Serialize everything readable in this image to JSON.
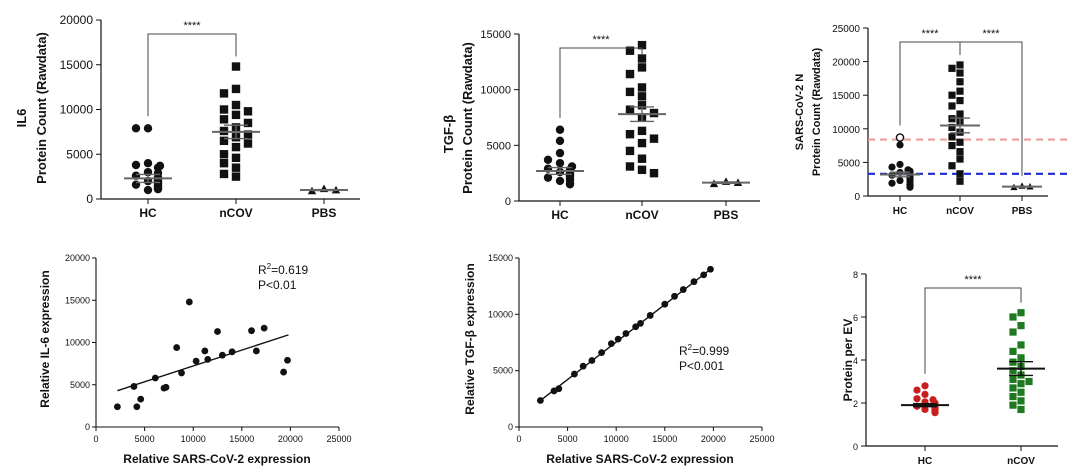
{
  "colors": {
    "black": "#111111",
    "gray": "#7a7a7a",
    "salmon": "#e8a09a",
    "blue": "#1a2bd6",
    "red": "#c81e1e",
    "green": "#1f7a1f"
  },
  "chart_data": [
    {
      "id": "p1",
      "type": "scatter",
      "title": "",
      "ylabel_top": "IL6",
      "ylabel": "Protein Count (Rawdata)",
      "ylim": [
        0,
        20000
      ],
      "yticks": [
        0,
        5000,
        10000,
        15000,
        20000
      ],
      "categories": [
        "HC",
        "nCOV",
        "PBS"
      ],
      "groups": [
        {
          "name": "HC",
          "marker": "circle",
          "color": "#111111",
          "mean": 2300,
          "sem": 450,
          "values": [
            7900,
            7900,
            4000,
            3800,
            3700,
            3500,
            3000,
            2900,
            2600,
            2400,
            2300,
            2100,
            2000,
            1900,
            1800,
            1700,
            1600,
            1500,
            1400,
            1300,
            1200,
            1100,
            1000
          ]
        },
        {
          "name": "nCOV",
          "marker": "square",
          "color": "#111111",
          "mean": 7500,
          "sem": 750,
          "values": [
            14800,
            12300,
            11800,
            10500,
            10000,
            9800,
            9400,
            8900,
            8500,
            8000,
            7600,
            7200,
            6900,
            6500,
            6200,
            5800,
            5000,
            4600,
            4000,
            3500,
            2800,
            2500
          ]
        },
        {
          "name": "PBS",
          "marker": "triangle",
          "color": "#111111",
          "mean": 1000,
          "sem": 60,
          "values": [
            1150,
            900,
            1000
          ]
        }
      ],
      "significance": [
        {
          "from": 0,
          "to": 1,
          "label": "****"
        }
      ]
    },
    {
      "id": "p2",
      "type": "scatter",
      "ylabel_top": "TGF-β",
      "ylabel": "Protein Count (Rawdata)",
      "ylim": [
        0,
        15000
      ],
      "yticks": [
        0,
        5000,
        10000,
        15000
      ],
      "categories": [
        "HC",
        "nCOV",
        "PBS"
      ],
      "groups": [
        {
          "name": "HC",
          "marker": "circle",
          "color": "#111111",
          "mean": 2700,
          "sem": 300,
          "values": [
            6400,
            5400,
            4300,
            3700,
            3400,
            3100,
            2900,
            2800,
            2700,
            2600,
            2500,
            2400,
            2300,
            2200,
            2100,
            2000,
            1900,
            1800,
            1600,
            1500
          ]
        },
        {
          "name": "nCOV",
          "marker": "square",
          "color": "#111111",
          "mean": 7800,
          "sem": 650,
          "values": [
            14000,
            13500,
            12800,
            12000,
            11400,
            10200,
            9800,
            9400,
            8600,
            8200,
            7900,
            7500,
            6300,
            6000,
            5600,
            5200,
            4500,
            3800,
            3100,
            2800,
            2500
          ]
        },
        {
          "name": "PBS",
          "marker": "triangle",
          "color": "#111111",
          "mean": 1650,
          "sem": 60,
          "values": [
            1750,
            1550,
            1650
          ]
        }
      ],
      "significance": [
        {
          "from": 0,
          "to": 1,
          "label": "****"
        }
      ]
    },
    {
      "id": "p3",
      "type": "scatter",
      "ylabel_top": "SARS-CoV-2 N",
      "ylabel": "Protein Count (Rawdata)",
      "ylim": [
        0,
        25000
      ],
      "yticks": [
        0,
        5000,
        10000,
        15000,
        20000,
        25000
      ],
      "categories": [
        "HC",
        "nCOV",
        "PBS"
      ],
      "ref_lines": [
        {
          "value": 8400,
          "color": "#e8a09a"
        },
        {
          "value": 3300,
          "color": "#1a2bd6"
        }
      ],
      "groups": [
        {
          "name": "HC",
          "marker": "circle",
          "color": "#111111",
          "mean": 3200,
          "sem": 350,
          "values": [
            8700,
            7600,
            4700,
            4300,
            3900,
            3700,
            3500,
            3300,
            3100,
            2900,
            2700,
            2500,
            2300,
            2100,
            1900,
            1700,
            1500,
            1300
          ],
          "open_values": [
            8700
          ]
        },
        {
          "name": "nCOV",
          "marker": "square",
          "color": "#111111",
          "mean": 10500,
          "sem": 1100,
          "values": [
            19500,
            19000,
            18300,
            17000,
            15600,
            15000,
            14200,
            13400,
            12200,
            11500,
            11000,
            10200,
            9500,
            8800,
            8000,
            7500,
            6600,
            5500,
            4500,
            3300,
            2200
          ]
        },
        {
          "name": "PBS",
          "marker": "triangle",
          "color": "#111111",
          "mean": 1400,
          "sem": 60,
          "values": [
            1500,
            1300,
            1400
          ]
        }
      ],
      "significance": [
        {
          "from": 0,
          "to": 1,
          "label": "****"
        },
        {
          "from": 1,
          "to": 2,
          "label": "****"
        }
      ]
    },
    {
      "id": "p4",
      "type": "scatter",
      "ylabel": "Relative IL-6 expression",
      "xlabel": "Relative SARS-CoV-2 expression",
      "xlim": [
        0,
        25000
      ],
      "xticks": [
        0,
        5000,
        10000,
        15000,
        20000,
        25000
      ],
      "ylim": [
        0,
        20000
      ],
      "yticks": [
        0,
        5000,
        10000,
        15000,
        20000
      ],
      "annotation": {
        "r2": "R2=0.619",
        "r2_prefix": "R",
        "r2_sup": "2",
        "r2_value": "=0.619",
        "p": "P<0.01"
      },
      "fit": {
        "x0": 2200,
        "y0": 4300,
        "x1": 19800,
        "y1": 10900
      },
      "points": [
        [
          2200,
          2400
        ],
        [
          3900,
          4800
        ],
        [
          4200,
          2400
        ],
        [
          4600,
          3300
        ],
        [
          6100,
          5800
        ],
        [
          7000,
          4600
        ],
        [
          7200,
          4700
        ],
        [
          8300,
          9400
        ],
        [
          8800,
          6400
        ],
        [
          9600,
          14800
        ],
        [
          10300,
          7800
        ],
        [
          11200,
          9000
        ],
        [
          11500,
          8000
        ],
        [
          12500,
          11300
        ],
        [
          13000,
          8500
        ],
        [
          14000,
          8900
        ],
        [
          16000,
          11400
        ],
        [
          16500,
          9000
        ],
        [
          17300,
          11700
        ],
        [
          19300,
          6500
        ],
        [
          19700,
          7900
        ]
      ]
    },
    {
      "id": "p5",
      "type": "scatter",
      "ylabel": "Relative TGF-β expression",
      "xlabel": "Relative SARS-CoV-2 expression",
      "xlim": [
        0,
        25000
      ],
      "xticks": [
        0,
        5000,
        10000,
        15000,
        20000,
        25000
      ],
      "ylim": [
        0,
        15000
      ],
      "yticks": [
        0,
        5000,
        10000,
        15000
      ],
      "annotation": {
        "r2": "R2=0.999",
        "r2_prefix": "R",
        "r2_sup": "2",
        "r2_value": "=0.999",
        "p": "P<0.001"
      },
      "fit": {
        "x0": 2200,
        "y0": 2350,
        "x1": 19700,
        "y1": 14000
      },
      "points": [
        [
          2200,
          2350
        ],
        [
          3600,
          3200
        ],
        [
          4100,
          3400
        ],
        [
          5700,
          4700
        ],
        [
          6600,
          5400
        ],
        [
          7500,
          5900
        ],
        [
          8500,
          6600
        ],
        [
          9500,
          7400
        ],
        [
          10200,
          7800
        ],
        [
          11000,
          8300
        ],
        [
          12000,
          8900
        ],
        [
          12500,
          9200
        ],
        [
          13500,
          9900
        ],
        [
          15000,
          10900
        ],
        [
          16000,
          11600
        ],
        [
          16900,
          12200
        ],
        [
          18000,
          12900
        ],
        [
          19000,
          13500
        ],
        [
          19700,
          14000
        ]
      ]
    },
    {
      "id": "p6",
      "type": "scatter",
      "ylabel": "Protein per EV",
      "ylim": [
        0,
        8
      ],
      "yticks": [
        0,
        2,
        4,
        6,
        8
      ],
      "categories": [
        "HC",
        "nCOV"
      ],
      "groups": [
        {
          "name": "HC",
          "marker": "circle",
          "color": "#c81e1e",
          "mean": 1.9,
          "sem": 0.07,
          "values": [
            2.8,
            2.6,
            2.4,
            2.2,
            2.15,
            2.05,
            2.0,
            1.95,
            1.95,
            1.9,
            1.9,
            1.85,
            1.85,
            1.8,
            1.8,
            1.75,
            1.75,
            1.7,
            1.7,
            1.65,
            1.6,
            1.55
          ]
        },
        {
          "name": "nCOV",
          "marker": "square",
          "color": "#1f7a1f",
          "mean": 3.6,
          "sem": 0.32,
          "values": [
            6.2,
            6.0,
            5.6,
            5.3,
            4.7,
            4.4,
            4.1,
            3.9,
            3.7,
            3.5,
            3.3,
            3.1,
            3.0,
            2.9,
            2.7,
            2.5,
            2.3,
            2.1,
            1.9,
            1.7
          ]
        }
      ],
      "significance": [
        {
          "from": 0,
          "to": 1,
          "label": "****"
        }
      ]
    }
  ]
}
